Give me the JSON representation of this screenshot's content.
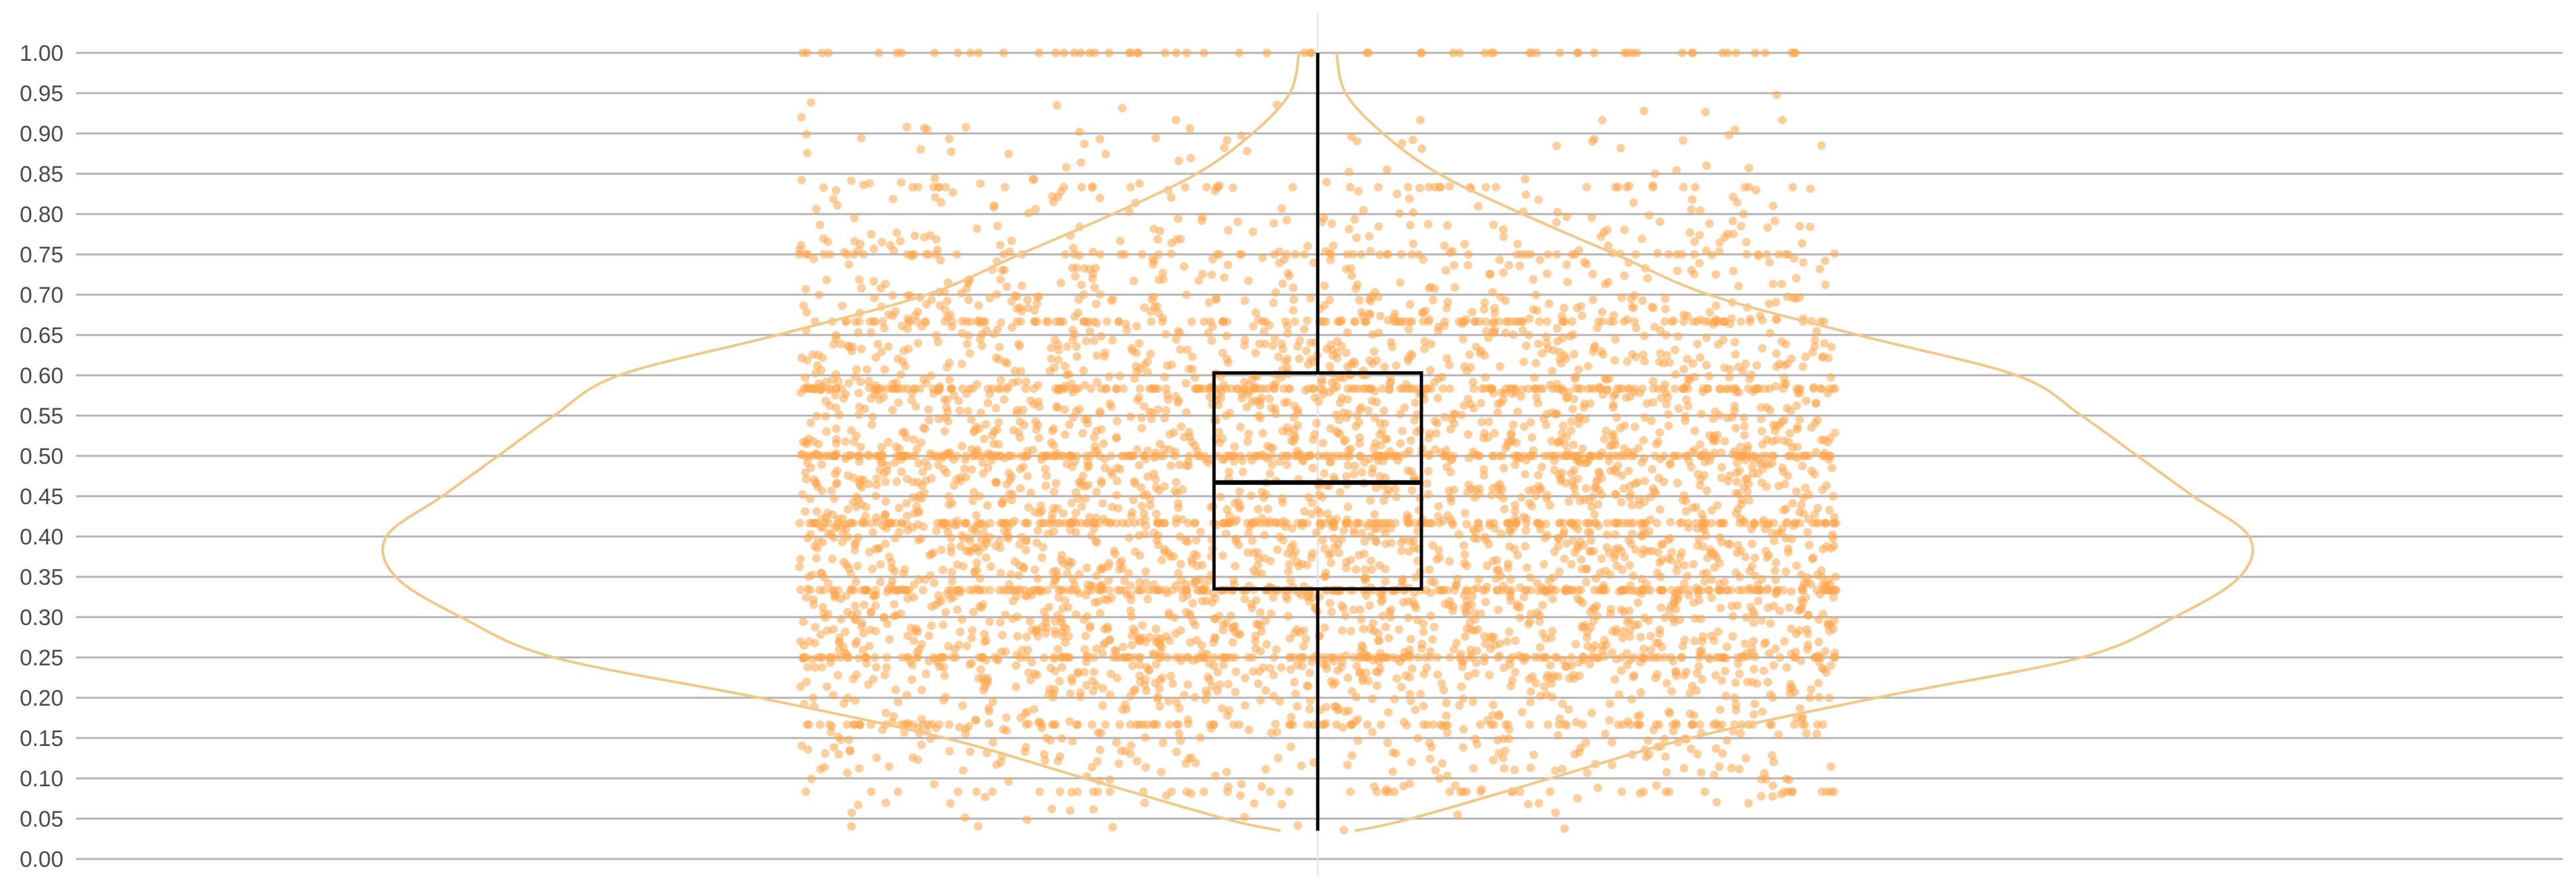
{
  "chart_data": {
    "type": "violin_box_jitter",
    "title": "",
    "xlabel": "",
    "ylabel": "",
    "ylim": [
      0,
      1
    ],
    "y_ticks": [
      "0.00",
      "0.05",
      "0.10",
      "0.15",
      "0.20",
      "0.25",
      "0.30",
      "0.35",
      "0.40",
      "0.45",
      "0.50",
      "0.55",
      "0.60",
      "0.65",
      "0.70",
      "0.75",
      "0.80",
      "0.85",
      "0.90",
      "0.95",
      "1.00"
    ],
    "grid": true,
    "box": {
      "whisker_low": 0.035,
      "q1": 0.335,
      "median": 0.467,
      "q3": 0.603,
      "whisker_high": 1.0
    },
    "violin_density": [
      {
        "y": 0.035,
        "d": 0.04
      },
      {
        "y": 0.05,
        "d": 0.1
      },
      {
        "y": 0.1,
        "d": 0.25
      },
      {
        "y": 0.15,
        "d": 0.4
      },
      {
        "y": 0.2,
        "d": 0.6
      },
      {
        "y": 0.25,
        "d": 0.82
      },
      {
        "y": 0.3,
        "d": 0.92
      },
      {
        "y": 0.35,
        "d": 0.99
      },
      {
        "y": 0.4,
        "d": 1.0
      },
      {
        "y": 0.45,
        "d": 0.94
      },
      {
        "y": 0.5,
        "d": 0.88
      },
      {
        "y": 0.55,
        "d": 0.82
      },
      {
        "y": 0.6,
        "d": 0.75
      },
      {
        "y": 0.65,
        "d": 0.58
      },
      {
        "y": 0.7,
        "d": 0.42
      },
      {
        "y": 0.75,
        "d": 0.32
      },
      {
        "y": 0.8,
        "d": 0.22
      },
      {
        "y": 0.85,
        "d": 0.13
      },
      {
        "y": 0.9,
        "d": 0.07
      },
      {
        "y": 0.95,
        "d": 0.03
      },
      {
        "y": 1.0,
        "d": 0.02
      }
    ],
    "point_summary": {
      "approx_points": 5200,
      "value_min": 0.035,
      "value_max": 1.0
    },
    "colors": {
      "points": "#ffa64d",
      "violin": "#f0c98a",
      "box": "#000000",
      "grid": "#b3b3b3",
      "center_line": "#e6e6e6"
    }
  }
}
